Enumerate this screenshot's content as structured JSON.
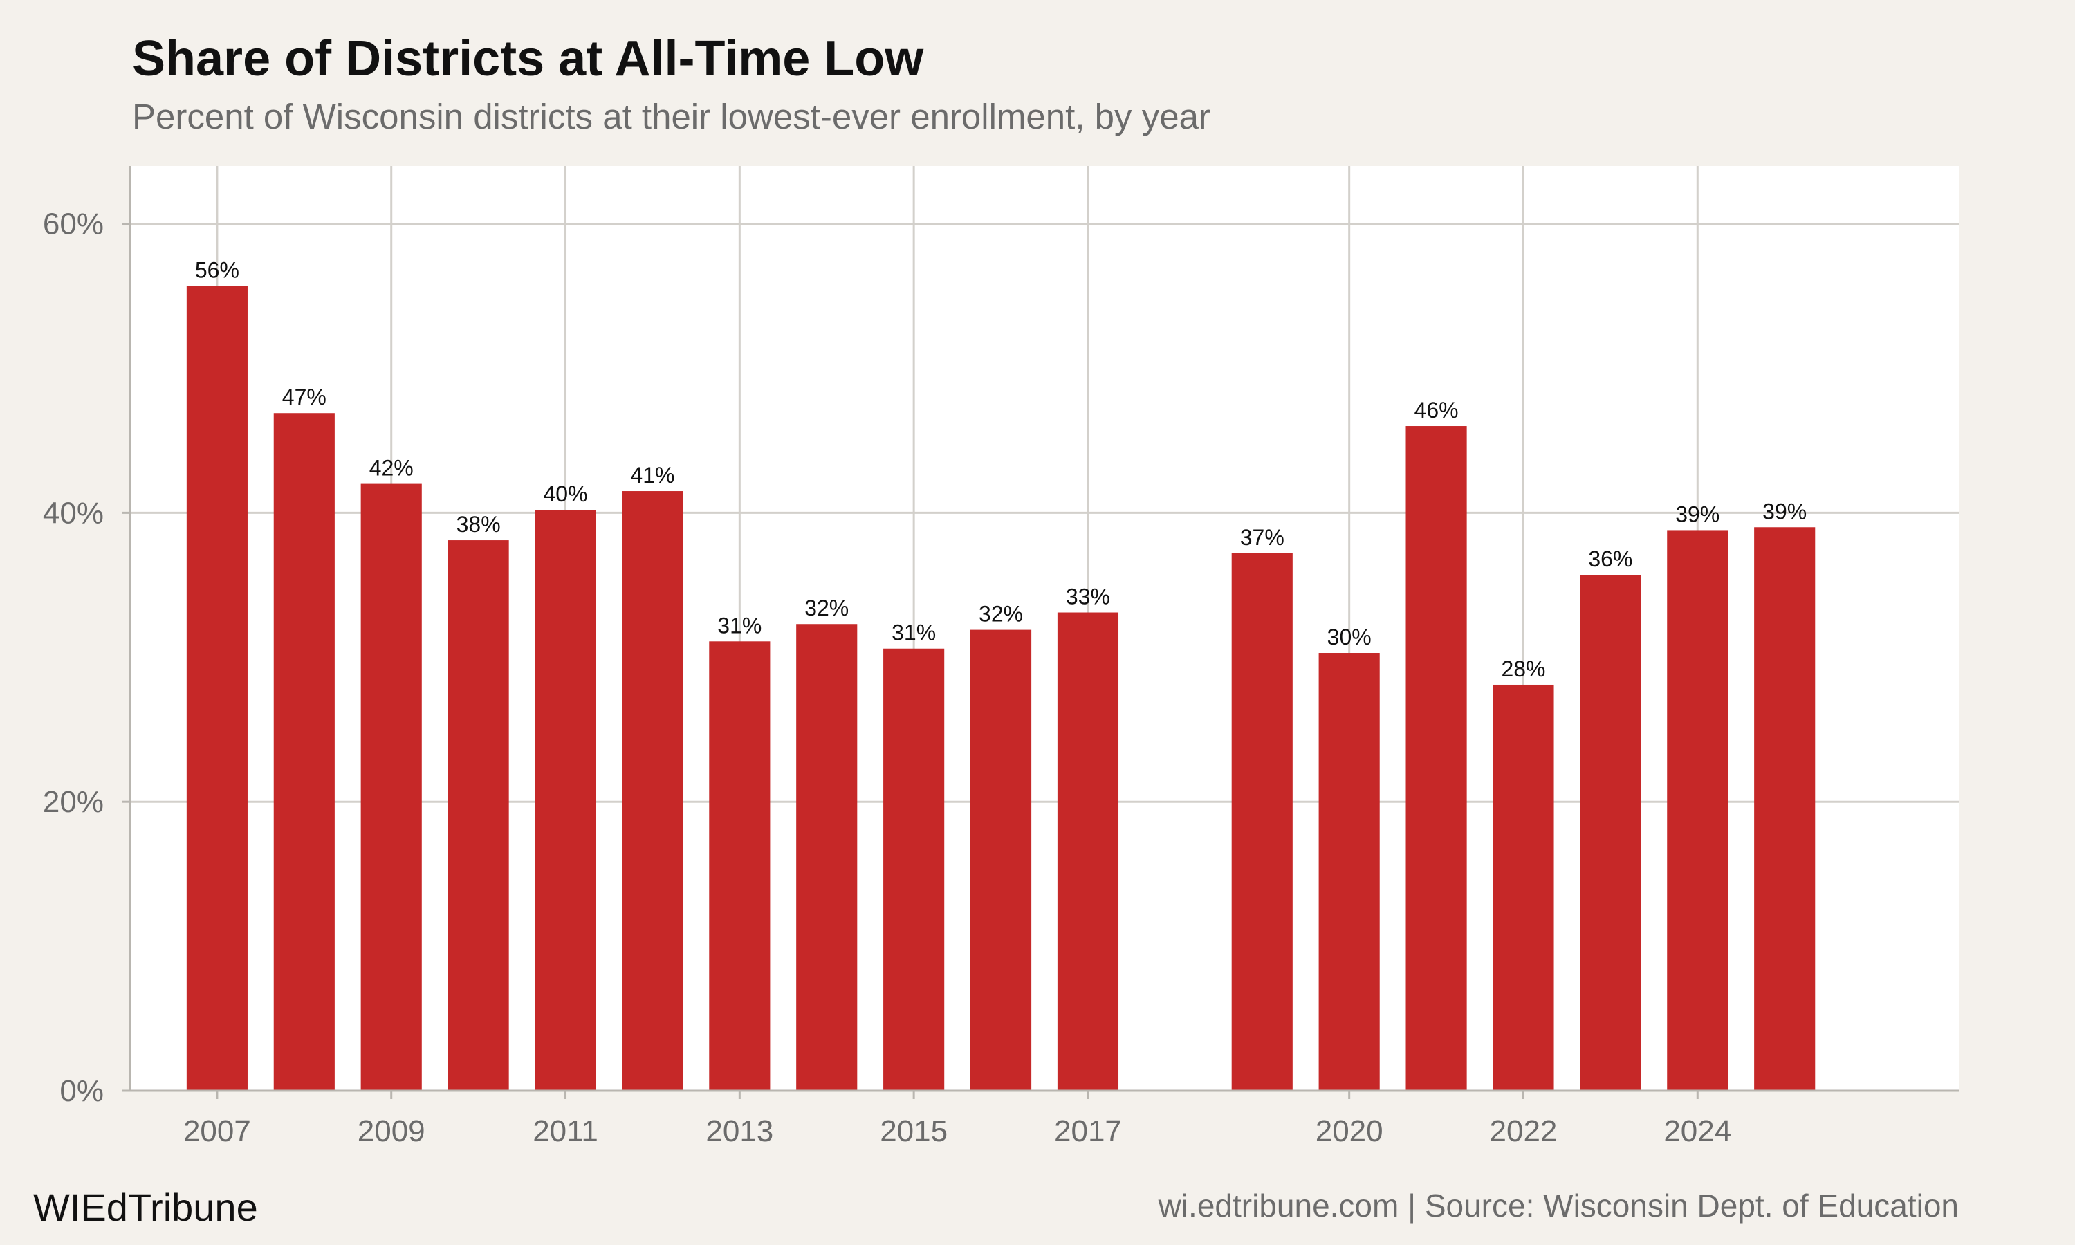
{
  "header": {
    "title": "Share of Districts at All-Time Low",
    "subtitle": "Percent of Wisconsin districts at their lowest-ever enrollment, by year"
  },
  "footer": {
    "brand": "WIEdTribune",
    "source": "wi.edtribune.com | Source: Wisconsin Dept. of Education"
  },
  "colors": {
    "bar": "#c62828",
    "background": "#f4f1ec",
    "plot_background": "#ffffff",
    "grid": "#d3d0cb"
  },
  "chart_data": {
    "type": "bar",
    "categories": [
      2007,
      2008,
      2009,
      2010,
      2011,
      2012,
      2013,
      2014,
      2015,
      2016,
      2017,
      2019,
      2020,
      2021,
      2022,
      2023,
      2024,
      2025
    ],
    "values": [
      55.7,
      46.9,
      42.0,
      38.1,
      40.2,
      41.5,
      31.1,
      32.3,
      30.6,
      31.9,
      33.1,
      37.2,
      30.3,
      46.0,
      28.1,
      35.7,
      38.8,
      39.0
    ],
    "data_labels": [
      "56%",
      "47%",
      "42%",
      "38%",
      "40%",
      "41%",
      "31%",
      "32%",
      "31%",
      "32%",
      "33%",
      "37%",
      "30%",
      "46%",
      "28%",
      "36%",
      "39%",
      "39%"
    ],
    "x_ticks": [
      2007,
      2009,
      2011,
      2013,
      2015,
      2017,
      2020,
      2022,
      2024
    ],
    "x_tick_labels": [
      "2007",
      "2009",
      "2011",
      "2013",
      "2015",
      "2017",
      "2020",
      "2022",
      "2024"
    ],
    "xlim": [
      2006,
      2027
    ],
    "y_ticks": [
      0,
      20,
      40,
      60
    ],
    "y_tick_labels": [
      "0%",
      "20%",
      "40%",
      "60%"
    ],
    "ylim": [
      0,
      64
    ],
    "grid": true,
    "xlabel": "",
    "ylabel": ""
  }
}
